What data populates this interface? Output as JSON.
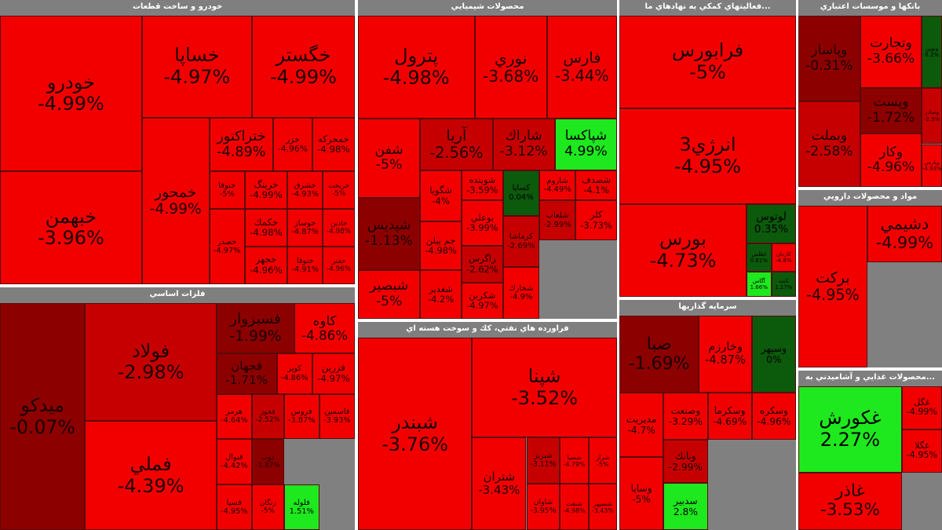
{
  "palette": {
    "neg_strong": "#f20000",
    "neg_mid": "#c60000",
    "neg_weak": "#8c0000",
    "pos_strong": "#1ee81e",
    "pos_weak": "#0c5a0c",
    "header_bg": "#7f7f7f",
    "header_text": "#ffffff"
  },
  "chart_data": {
    "type": "heatmap",
    "sectors": [
      {
        "title": "خودرو و ساخت قطعات",
        "tiles": [
          {
            "symbol": "خودرو",
            "change": "-4.99%",
            "value": -4.99
          },
          {
            "symbol": "خساپا",
            "change": "-4.97%",
            "value": -4.97
          },
          {
            "symbol": "خگستر",
            "change": "-4.99%",
            "value": -4.99
          },
          {
            "symbol": "خبهمن",
            "change": "-3.96%",
            "value": -3.96
          },
          {
            "symbol": "خمحور",
            "change": "-4.99%",
            "value": -4.99
          },
          {
            "symbol": "ختراكتور",
            "change": "-4.89%",
            "value": -4.89
          },
          {
            "symbol": "خزر",
            "change": "-4.96%",
            "value": -4.96
          },
          {
            "symbol": "خمحركه",
            "change": "-4.98%",
            "value": -4.98
          },
          {
            "symbol": "خنوفا",
            "change": "-5%",
            "value": -5
          },
          {
            "symbol": "خرينگ",
            "change": "-4.99%",
            "value": -4.99
          },
          {
            "symbol": "خشرق",
            "change": "-4.93%",
            "value": -4.93
          },
          {
            "symbol": "خریخت",
            "change": "-5%",
            "value": -5
          },
          {
            "symbol": "خكمك",
            "change": "-4.98%",
            "value": -4.98
          },
          {
            "symbol": "خوساز",
            "change": "-4.87%",
            "value": -4.87
          },
          {
            "symbol": "خاذين",
            "change": "-4.98%",
            "value": -4.98
          },
          {
            "symbol": "خصدر",
            "change": "-4.97%",
            "value": -4.97
          },
          {
            "symbol": "خجهر",
            "change": "-4.96%",
            "value": -4.96
          },
          {
            "symbol": "ختوقا",
            "change": "-4.91%",
            "value": -4.91
          },
          {
            "symbol": "خفنر",
            "change": "-4.96%",
            "value": -4.96
          }
        ]
      },
      {
        "title": "محصولات شيميايي",
        "tiles": [
          {
            "symbol": "پترول",
            "change": "-4.98%",
            "value": -4.98
          },
          {
            "symbol": "نوري",
            "change": "-3.68%",
            "value": -3.68
          },
          {
            "symbol": "فارس",
            "change": "-3.44%",
            "value": -3.44
          },
          {
            "symbol": "شفن",
            "change": "-5%",
            "value": -5
          },
          {
            "symbol": "آريا",
            "change": "-2.56%",
            "value": -2.56
          },
          {
            "symbol": "شاراك",
            "change": "-3.12%",
            "value": -3.12
          },
          {
            "symbol": "شپاكسا",
            "change": "4.99%",
            "value": 4.99
          },
          {
            "symbol": "شپديس",
            "change": "-1.13%",
            "value": -1.13
          },
          {
            "symbol": "شگويا",
            "change": "-4%",
            "value": -4
          },
          {
            "symbol": "شوينده",
            "change": "-3.59%",
            "value": -3.59
          },
          {
            "symbol": "كساپا",
            "change": "0.04%",
            "value": 0.04
          },
          {
            "symbol": "شاروم",
            "change": "-4.49%",
            "value": -4.49
          },
          {
            "symbol": "شصدف",
            "change": "-4.1%",
            "value": -4.1
          },
          {
            "symbol": "جم پيلن",
            "change": "-4.98%",
            "value": -4.98
          },
          {
            "symbol": "بوعلي",
            "change": "-3.99%",
            "value": -3.99
          },
          {
            "symbol": "شلعاب",
            "change": "-2.99%",
            "value": -2.99
          },
          {
            "symbol": "كلر",
            "change": "-3.73%",
            "value": -3.73
          },
          {
            "symbol": "شبصير",
            "change": "-5%",
            "value": -5
          },
          {
            "symbol": "زاگرس",
            "change": "-2.62%",
            "value": -2.62
          },
          {
            "symbol": "كرماشا",
            "change": "-2.69%",
            "value": -2.69
          },
          {
            "symbol": "شغدير",
            "change": "-4.2%",
            "value": -4.2
          },
          {
            "symbol": "شكربن",
            "change": "-4.97%",
            "value": -4.97
          },
          {
            "symbol": "شخارك",
            "change": "-4.9%",
            "value": -4.9
          }
        ]
      },
      {
        "title": "...فعاليتهاي كمكي به نهادهاي ما",
        "tiles": [
          {
            "symbol": "فرابورس",
            "change": "-5%",
            "value": -5
          },
          {
            "symbol": "انرژي3",
            "change": "-4.95%",
            "value": -4.95
          },
          {
            "symbol": "بورس",
            "change": "-4.73%",
            "value": -4.73
          },
          {
            "symbol": "لوتوس",
            "change": "0.35%",
            "value": 0.35
          },
          {
            "symbol": "اطلس",
            "change": "0.61%",
            "value": 0.61
          },
          {
            "symbol": "كاردان",
            "change": "-4.8%",
            "value": -4.8
          },
          {
            "symbol": "آگاس",
            "change": "1.66%",
            "value": 1.66
          },
          {
            "symbol": "ثابت",
            "change": "1.17%",
            "value": 1.17
          }
        ]
      },
      {
        "title": "بانكها و موسسات اعتباري",
        "tiles": [
          {
            "symbol": "وپاسار",
            "change": "-0.31%",
            "value": -0.31
          },
          {
            "symbol": "وتجارت",
            "change": "-3.66%",
            "value": -3.66
          },
          {
            "symbol": "ونوين",
            "change": "0.2%",
            "value": 0.2
          },
          {
            "symbol": "وپست",
            "change": "-1.72%",
            "value": -1.72
          },
          {
            "symbol": "وبملت",
            "change": "-2.58%",
            "value": -2.58
          },
          {
            "symbol": "وكار",
            "change": "-4.96%",
            "value": -4.96
          },
          {
            "symbol": "وصادر",
            "change": "-2.5%",
            "value": -2.5
          },
          {
            "symbol": "وپارس",
            "change": "-4.93%",
            "value": -4.93
          }
        ]
      },
      {
        "title": "فلزات اساسي",
        "tiles": [
          {
            "symbol": "فملي",
            "change": "-4.39%",
            "value": -4.39
          },
          {
            "symbol": "فولاد",
            "change": "-2.98%",
            "value": -2.98
          },
          {
            "symbol": "فسبزوار",
            "change": "-1.99%",
            "value": -1.99
          },
          {
            "symbol": "كاوه",
            "change": "-4.86%",
            "value": -4.86
          },
          {
            "symbol": "ميدكو",
            "change": "-0.07%",
            "value": -0.07
          },
          {
            "symbol": "فجهان",
            "change": "-1.71%",
            "value": -1.71
          },
          {
            "symbol": "كوير",
            "change": "-4.86%",
            "value": -4.86
          },
          {
            "symbol": "فزرين",
            "change": "-4.97%",
            "value": -4.97
          },
          {
            "symbol": "هرمز",
            "change": "-4.64%",
            "value": -4.64
          },
          {
            "symbol": "فخوز",
            "change": "-2.52%",
            "value": -2.52
          },
          {
            "symbol": "فروس",
            "change": "-3.87%",
            "value": -3.87
          },
          {
            "symbol": "فاسمين",
            "change": "-3.93%",
            "value": -3.93
          },
          {
            "symbol": "فنوال",
            "change": "-4.42%",
            "value": -4.42
          },
          {
            "symbol": "فسپا",
            "change": "-4.95%",
            "value": -4.95
          },
          {
            "symbol": "ذوب",
            "change": "-1.87%",
            "value": -1.87
          },
          {
            "symbol": "زنگان",
            "change": "-5%",
            "value": -5
          },
          {
            "symbol": "فلوله",
            "change": "1.51%",
            "value": 1.51
          }
        ]
      },
      {
        "title": "فراورده هاي نفتي، كك و سوخت هسته اي",
        "tiles": [
          {
            "symbol": "شبندر",
            "change": "-3.76%",
            "value": -3.76
          },
          {
            "symbol": "شپنا",
            "change": "-3.52%",
            "value": -3.52
          },
          {
            "symbol": "شتران",
            "change": "-3.43%",
            "value": -3.43
          },
          {
            "symbol": "شبريز",
            "change": "-3.11%",
            "value": -3.11
          },
          {
            "symbol": "شاوان",
            "change": "-3.95%",
            "value": -3.95
          },
          {
            "symbol": "شسپا",
            "change": "-4.79%",
            "value": -4.79
          },
          {
            "symbol": "شراز",
            "change": "-5%",
            "value": -5
          },
          {
            "symbol": "شنفت",
            "change": "-4.98%",
            "value": -4.98
          },
          {
            "symbol": "شسپهر",
            "change": "-3.43%",
            "value": -3.43
          }
        ]
      },
      {
        "title": "سرمايه گذاريها",
        "tiles": [
          {
            "symbol": "صبا",
            "change": "-1.69%",
            "value": -1.69
          },
          {
            "symbol": "وخارزم",
            "change": "-4.87%",
            "value": -4.87
          },
          {
            "symbol": "وسپهر",
            "change": "0%",
            "value": 0
          },
          {
            "symbol": "مديريت",
            "change": "-4.7%",
            "value": -4.7
          },
          {
            "symbol": "وصنعت",
            "change": "-3.29%",
            "value": -3.29
          },
          {
            "symbol": "وسكرما",
            "change": "-4.69%",
            "value": -4.69
          },
          {
            "symbol": "وسكره",
            "change": "-4.96%",
            "value": -4.96
          },
          {
            "symbol": "وسايا",
            "change": "-5%",
            "value": -5
          },
          {
            "symbol": "وبانك",
            "change": "-2.99%",
            "value": -2.99
          },
          {
            "symbol": "سدبير",
            "change": "2.8%",
            "value": 2.8
          }
        ]
      },
      {
        "title": "مواد و محصولات دارويي",
        "tiles": [
          {
            "symbol": "دشيمي",
            "change": "-4.99%",
            "value": -4.99
          },
          {
            "symbol": "بركت",
            "change": "-4.95%",
            "value": -4.95
          }
        ]
      },
      {
        "title": "...محصولات غذايي و آشاميدني به",
        "tiles": [
          {
            "symbol": "غكورش",
            "change": "2.27%",
            "value": 2.27
          },
          {
            "symbol": "غاذر",
            "change": "-3.53%",
            "value": -3.53
          },
          {
            "symbol": "غگل",
            "change": "-4.99%",
            "value": -4.99
          },
          {
            "symbol": "غگلا",
            "change": "-4.95%",
            "value": -4.95
          }
        ]
      }
    ]
  }
}
